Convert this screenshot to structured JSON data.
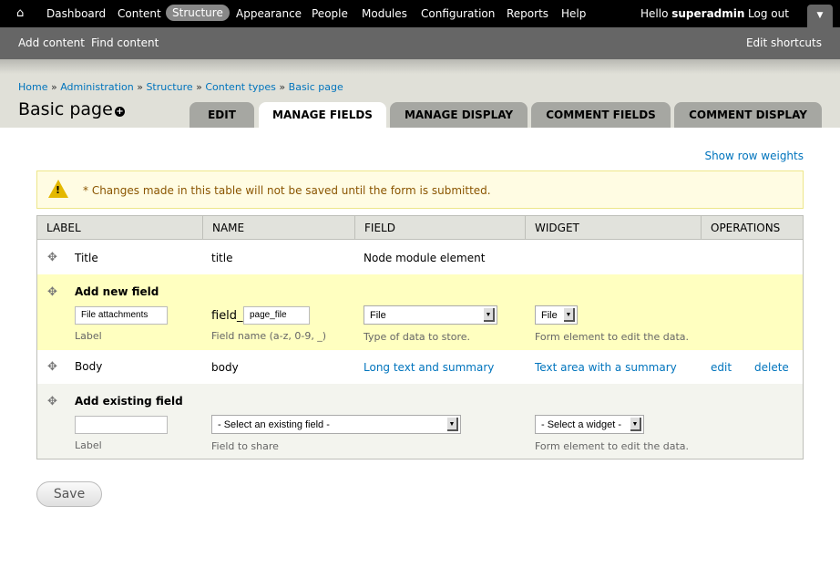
{
  "toolbar": {
    "home_icon": "home-icon",
    "items": [
      "Dashboard",
      "Content",
      "Structure",
      "Appearance",
      "People",
      "Modules",
      "Configuration",
      "Reports",
      "Help"
    ],
    "active": "Structure",
    "hello": "Hello ",
    "user": "superadmin",
    "logout": "Log out",
    "drawer": "▼"
  },
  "shortcuts": {
    "items": [
      "Add content",
      "Find content"
    ],
    "edit": "Edit shortcuts"
  },
  "breadcrumb": [
    "Home",
    "Administration",
    "Structure",
    "Content types",
    "Basic page"
  ],
  "breadcrumb_sep": " » ",
  "title": "Basic page",
  "tabs": [
    "EDIT",
    "MANAGE FIELDS",
    "MANAGE DISPLAY",
    "COMMENT FIELDS",
    "COMMENT DISPLAY"
  ],
  "active_tab": "MANAGE FIELDS",
  "show_row_weights": "Show row weights",
  "warning": {
    "icon": "warning-icon",
    "message": "* Changes made in this table will not be saved until the form is submitted."
  },
  "table": {
    "headers": [
      "LABEL",
      "NAME",
      "FIELD",
      "WIDGET",
      "OPERATIONS"
    ],
    "title_row": {
      "label": "Title",
      "name": "title",
      "field": "Node module element"
    },
    "add_new": {
      "heading": "Add new field",
      "label_value": "File attachments",
      "label_desc": "Label",
      "prefix": "field_",
      "name_value": "page_file",
      "name_desc": "Field name (a-z, 0-9, _)",
      "type_value": "File",
      "type_desc": "Type of data to store.",
      "widget_value": "File",
      "widget_desc": "Form element to edit the data."
    },
    "body_row": {
      "label": "Body",
      "name": "body",
      "field": "Long text and summary",
      "widget": "Text area with a summary",
      "edit": "edit",
      "delete": "delete"
    },
    "add_existing": {
      "heading": "Add existing field",
      "label_value": "",
      "label_desc": "Label",
      "field_value": "- Select an existing field -",
      "field_desc": "Field to share",
      "widget_value": "- Select a widget -",
      "widget_desc": "Form element to edit the data."
    }
  },
  "save": "Save",
  "colors": {
    "toolbar": "#000000",
    "shortcuts": "#666666",
    "link": "#0074bd",
    "add_new_bg": "#ffffc0",
    "add_existing_bg": "#f3f4ee"
  }
}
